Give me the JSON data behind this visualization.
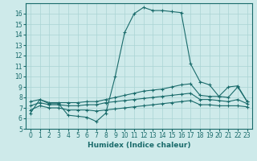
{
  "xlabel": "Humidex (Indice chaleur)",
  "xlim": [
    -0.5,
    23.5
  ],
  "ylim": [
    5,
    17
  ],
  "yticks": [
    5,
    6,
    7,
    8,
    9,
    10,
    11,
    12,
    13,
    14,
    15,
    16
  ],
  "xticks": [
    0,
    1,
    2,
    3,
    4,
    5,
    6,
    7,
    8,
    9,
    10,
    11,
    12,
    13,
    14,
    15,
    16,
    17,
    18,
    19,
    20,
    21,
    22,
    23
  ],
  "bg_color": "#ceeaea",
  "line_color": "#1a6b6b",
  "grid_color": "#aad4d4",
  "line1_x": [
    0,
    1,
    2,
    3,
    4,
    5,
    6,
    7,
    8,
    9,
    10,
    11,
    12,
    13,
    14,
    15,
    16,
    17,
    18,
    19,
    20,
    21,
    22,
    23
  ],
  "line1_y": [
    6.5,
    7.8,
    7.4,
    7.4,
    6.3,
    6.2,
    6.1,
    5.7,
    6.5,
    10.0,
    14.2,
    16.0,
    16.6,
    16.3,
    16.3,
    16.2,
    16.1,
    11.2,
    9.5,
    9.2,
    8.1,
    9.0,
    9.1,
    7.6
  ],
  "line2_x": [
    0,
    1,
    2,
    3,
    4,
    5,
    6,
    7,
    8,
    9,
    10,
    11,
    12,
    13,
    14,
    15,
    16,
    17,
    18,
    19,
    20,
    21,
    22,
    23
  ],
  "line2_y": [
    7.6,
    7.8,
    7.5,
    7.5,
    7.5,
    7.5,
    7.6,
    7.6,
    7.8,
    8.0,
    8.2,
    8.4,
    8.6,
    8.7,
    8.8,
    9.0,
    9.2,
    9.3,
    8.2,
    8.1,
    8.1,
    8.0,
    9.0,
    7.6
  ],
  "line3_x": [
    0,
    1,
    2,
    3,
    4,
    5,
    6,
    7,
    8,
    9,
    10,
    11,
    12,
    13,
    14,
    15,
    16,
    17,
    18,
    19,
    20,
    21,
    22,
    23
  ],
  "line3_y": [
    7.2,
    7.5,
    7.3,
    7.3,
    7.2,
    7.2,
    7.3,
    7.3,
    7.5,
    7.6,
    7.7,
    7.8,
    7.9,
    8.0,
    8.1,
    8.2,
    8.3,
    8.4,
    7.8,
    7.8,
    7.7,
    7.6,
    7.8,
    7.4
  ],
  "line4_x": [
    0,
    1,
    2,
    3,
    4,
    5,
    6,
    7,
    8,
    9,
    10,
    11,
    12,
    13,
    14,
    15,
    16,
    17,
    18,
    19,
    20,
    21,
    22,
    23
  ],
  "line4_y": [
    6.8,
    7.2,
    7.0,
    7.0,
    6.8,
    6.8,
    6.8,
    6.7,
    6.8,
    6.9,
    7.0,
    7.1,
    7.2,
    7.3,
    7.4,
    7.5,
    7.6,
    7.7,
    7.3,
    7.3,
    7.2,
    7.2,
    7.2,
    7.1
  ]
}
